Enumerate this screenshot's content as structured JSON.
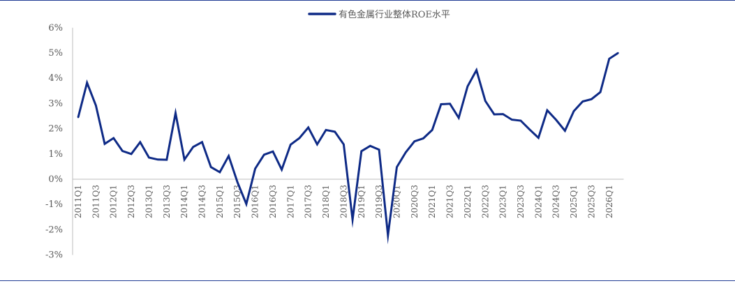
{
  "colors": {
    "line": "#0e2a86",
    "axis": "#bdbdbd",
    "rule": "#1f3a93",
    "text": "#595959"
  },
  "chart_data": {
    "type": "line",
    "title": "",
    "xlabel": "",
    "ylabel": "",
    "legend_position": "top-center",
    "grid": false,
    "ylim": [
      -3,
      6
    ],
    "yticks": [
      6,
      5,
      4,
      3,
      2,
      1,
      0,
      -1,
      -2,
      -3
    ],
    "ytick_labels": [
      "6%",
      "5%",
      "4%",
      "3%",
      "2%",
      "1%",
      "0%",
      "-1%",
      "-2%",
      "-3%"
    ],
    "x": [
      "2011Q1",
      "2011Q2",
      "2011Q3",
      "2011Q4",
      "2012Q1",
      "2012Q2",
      "2012Q3",
      "2012Q4",
      "2013Q1",
      "2013Q2",
      "2013Q3",
      "2013Q4",
      "2014Q1",
      "2014Q2",
      "2014Q3",
      "2014Q4",
      "2015Q1",
      "2015Q2",
      "2015Q3",
      "2015Q4",
      "2016Q1",
      "2016Q2",
      "2016Q3",
      "2016Q4",
      "2017Q1",
      "2017Q2",
      "2017Q3",
      "2017Q4",
      "2018Q1",
      "2018Q2",
      "2018Q3",
      "2018Q4",
      "2019Q1",
      "2019Q2",
      "2019Q3",
      "2019Q4",
      "2020Q1",
      "2020Q2",
      "2020Q3",
      "2020Q4",
      "2021Q1",
      "2021Q2",
      "2021Q3",
      "2021Q4",
      "2022Q1",
      "2022Q2",
      "2022Q3",
      "2022Q4",
      "2023Q1",
      "2023Q2",
      "2023Q3",
      "2023Q4",
      "2024Q1",
      "2024Q2",
      "2024Q3",
      "2024Q4",
      "2025Q1",
      "2025Q2",
      "2025Q3",
      "2025Q4",
      "2026Q1",
      "2026Q2"
    ],
    "xtick_labels": [
      "2011Q1",
      "2011Q3",
      "2012Q1",
      "2012Q3",
      "2013Q1",
      "2013Q3",
      "2014Q1",
      "2014Q3",
      "2015Q1",
      "2015Q3",
      "2016Q1",
      "2016Q3",
      "2017Q1",
      "2017Q3",
      "2018Q1",
      "2018Q3",
      "2019Q1",
      "2019Q3",
      "2020Q1",
      "2020Q3",
      "2021Q1",
      "2021Q3",
      "2022Q1",
      "2022Q3",
      "2023Q1",
      "2023Q3",
      "2024Q1",
      "2024Q3",
      "2025Q1",
      "2025Q3",
      "2026Q1"
    ],
    "series": [
      {
        "name": "有色金属行业整体ROE水平",
        "values": [
          2.45,
          3.82,
          2.92,
          1.4,
          1.63,
          1.12,
          1.0,
          1.47,
          0.86,
          0.78,
          0.77,
          2.62,
          0.78,
          1.28,
          1.47,
          0.48,
          0.28,
          0.92,
          -0.12,
          -0.98,
          0.42,
          0.97,
          1.1,
          0.38,
          1.37,
          1.63,
          2.05,
          1.38,
          1.95,
          1.88,
          1.38,
          -1.6,
          1.11,
          1.32,
          1.17,
          -2.22,
          0.48,
          1.06,
          1.5,
          1.62,
          1.95,
          2.97,
          2.99,
          2.43,
          3.68,
          4.32,
          3.1,
          2.57,
          2.58,
          2.36,
          2.32,
          1.97,
          1.64,
          2.73,
          2.35,
          1.92,
          2.7,
          3.08,
          3.17,
          3.45,
          4.77,
          5.0
        ]
      }
    ]
  }
}
